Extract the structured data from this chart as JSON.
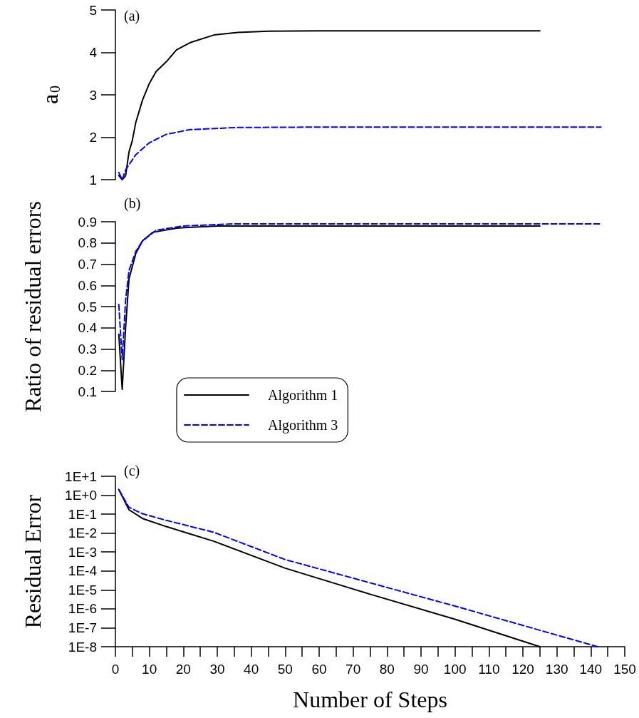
{
  "chart_data": [
    {
      "type": "line",
      "ylabel": "a$_{0}$",
      "annotations": [
        "(a)"
      ],
      "xlim": [
        0,
        150
      ],
      "ylim": [
        1,
        5
      ],
      "yticks": [
        1,
        2,
        3,
        4,
        5
      ],
      "tick_labels": "y",
      "marker": "none",
      "series": [
        {
          "color": "#000000",
          "line_style": "solid",
          "x": [
            1,
            2,
            3,
            4,
            5,
            6,
            8,
            10,
            12,
            15,
            18,
            22,
            29,
            36,
            45,
            60,
            125
          ],
          "values": [
            1.1,
            1.0,
            1.09,
            1.65,
            1.93,
            2.35,
            2.88,
            3.27,
            3.55,
            3.78,
            4.06,
            4.23,
            4.41,
            4.47,
            4.5,
            4.51,
            4.51
          ]
        },
        {
          "color": "#0000ff",
          "line_style": "dashed",
          "x": [
            1,
            2,
            3,
            6,
            10,
            15,
            22,
            36,
            60,
            143
          ],
          "values": [
            1.17,
            1.0,
            1.23,
            1.59,
            1.87,
            2.07,
            2.18,
            2.23,
            2.24,
            2.24
          ]
        }
      ]
    },
    {
      "type": "line",
      "ylabel": "Ratio of residual errors",
      "annotations": [
        "(b)"
      ],
      "xlim": [
        0,
        150
      ],
      "ylim": [
        0.1,
        0.9
      ],
      "yticks": [
        0.1,
        0.2,
        0.3,
        0.4,
        0.5,
        0.6,
        0.7,
        0.8,
        0.9
      ],
      "tick_labels": "y",
      "marker": "none",
      "legend": "bottom",
      "series": [
        {
          "name": "Algorithm 1",
          "color": "#000000",
          "line_style": "solid",
          "x": [
            1,
            2,
            3,
            4,
            6,
            8,
            11,
            18,
            30,
            125
          ],
          "values": [
            0.37,
            0.11,
            0.4,
            0.63,
            0.75,
            0.81,
            0.85,
            0.87,
            0.88,
            0.88
          ]
        },
        {
          "name": "Algorithm 3",
          "color": "#0000ff",
          "line_style": "dashed",
          "x": [
            1,
            2,
            3,
            4,
            6,
            8,
            12,
            20,
            35,
            143
          ],
          "values": [
            0.51,
            0.25,
            0.53,
            0.67,
            0.76,
            0.81,
            0.86,
            0.88,
            0.89,
            0.89
          ]
        }
      ]
    },
    {
      "type": "line",
      "ylabel": "Residual Error",
      "xlabel": "Number of Steps",
      "annotations": [
        "(c)"
      ],
      "xlim": [
        0,
        150
      ],
      "ylim": [
        1e-08,
        10
      ],
      "log": "y",
      "xticks": [
        0,
        {
          "value": 5,
          "label": null
        },
        10,
        {
          "value": 15,
          "label": null
        },
        20,
        {
          "value": 25,
          "label": null
        },
        30,
        {
          "value": 35,
          "label": null
        },
        40,
        {
          "value": 45,
          "label": null
        },
        50,
        {
          "value": 55,
          "label": null
        },
        60,
        {
          "value": 65,
          "label": null
        },
        70,
        {
          "value": 75,
          "label": null
        },
        80,
        {
          "value": 85,
          "label": null
        },
        90,
        {
          "value": 95,
          "label": null
        },
        100,
        {
          "value": 105,
          "label": null
        },
        110,
        {
          "value": 115,
          "label": null
        },
        120,
        {
          "value": 125,
          "label": null
        },
        130,
        {
          "value": 135,
          "label": null
        },
        140,
        {
          "value": 145,
          "label": null
        },
        150
      ],
      "yticks": [
        {
          "value": 1e-08,
          "label": "1E-8"
        },
        {
          "value": 1e-07,
          "label": "1E-7"
        },
        {
          "value": 1e-06,
          "label": "1E-6"
        },
        {
          "value": 1e-05,
          "label": "1E-5"
        },
        {
          "value": 0.0001,
          "label": "1E-4"
        },
        {
          "value": 0.001,
          "label": "1E-3"
        },
        {
          "value": 0.01,
          "label": "1E-2"
        },
        {
          "value": 0.1,
          "label": "1E-1"
        },
        {
          "value": 1,
          "label": "1E+0"
        },
        {
          "value": 10,
          "label": "1E+1"
        }
      ],
      "marker": "none",
      "series": [
        {
          "color": "#000000",
          "line_style": "solid",
          "x": [
            1,
            4,
            8,
            15,
            29,
            50,
            75,
            100,
            125
          ],
          "values": [
            2,
            0.17,
            0.059,
            0.022,
            0.0037,
            0.00014,
            5.9e-06,
            2.8e-07,
            1e-08
          ]
        },
        {
          "color": "#0000ff",
          "line_style": "dashed",
          "x": [
            1,
            4,
            8,
            15,
            29,
            50,
            100,
            142
          ],
          "values": [
            2,
            0.23,
            0.105,
            0.047,
            0.011,
            0.0004,
            1.4e-06,
            1e-08
          ]
        }
      ]
    }
  ]
}
